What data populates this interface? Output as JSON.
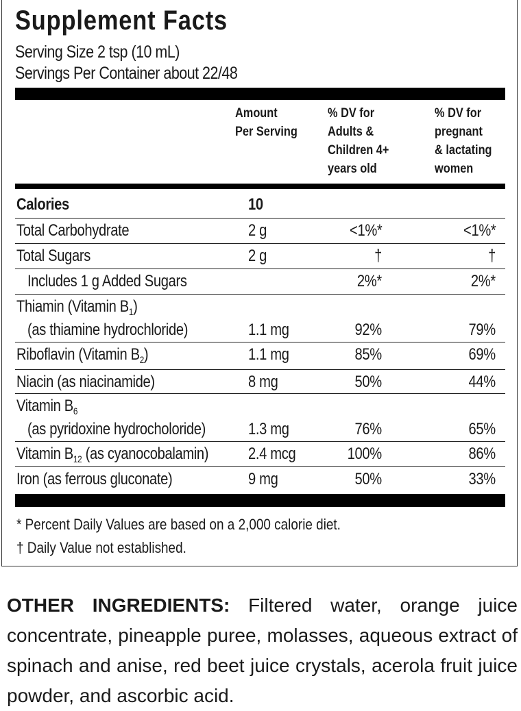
{
  "panel": {
    "title": "Supplement Facts",
    "serving_size": "Serving Size 2 tsp (10 mL)",
    "servings_per_container": "Servings Per Container about 22/48",
    "headers": {
      "amount": "Amount\nPer Serving",
      "dv_adults": "% DV for\nAdults &\nChildren 4+\nyears old",
      "dv_pregnant": "% DV for\npregnant\n& lactating\nwomen"
    },
    "calories": {
      "label": "Calories",
      "amount": "10"
    },
    "rows": [
      {
        "label": "Total Carbohydrate",
        "amount": "2 g",
        "dv_adults": "<1%*",
        "dv_pregnant": "<1%*"
      },
      {
        "label": "Total Sugars",
        "amount": "2 g",
        "dv_adults": "†",
        "dv_pregnant": "†"
      },
      {
        "label": "Includes 1 g Added Sugars",
        "amount": "",
        "dv_adults": "2%*",
        "dv_pregnant": "2%*",
        "indent": true
      },
      {
        "label": "Thiamin (Vitamin B",
        "sub": "1",
        "post": ")",
        "line2": "(as thiamine hydrochloride)",
        "amount": "1.1 mg",
        "dv_adults": "92%",
        "dv_pregnant": "79%"
      },
      {
        "label": "Riboflavin (Vitamin B",
        "sub": "2",
        "post": ")",
        "amount": "1.1 mg",
        "dv_adults": "85%",
        "dv_pregnant": "69%"
      },
      {
        "label": "Niacin (as niacinamide)",
        "amount": "8 mg",
        "dv_adults": "50%",
        "dv_pregnant": "44%"
      },
      {
        "label": "Vitamin B",
        "sub": "6",
        "post": "",
        "line2": "(as pyridoxine hydrocholoride)",
        "amount": "1.3 mg",
        "dv_adults": "76%",
        "dv_pregnant": "65%"
      },
      {
        "label": "Vitamin B",
        "sub": "12",
        "post": " (as cyanocobalamin)",
        "amount": "2.4 mcg",
        "dv_adults": "100%",
        "dv_pregnant": "86%"
      },
      {
        "label": "Iron (as ferrous gluconate)",
        "amount": "9 mg",
        "dv_adults": "50%",
        "dv_pregnant": "33%"
      }
    ],
    "footnotes": [
      "* Percent Daily Values are based on a 2,000 calorie diet.",
      "† Daily Value not established."
    ]
  },
  "other_ingredients": {
    "heading": "OTHER INGREDIENTS:",
    "text": " Filtered water, orange juice concentrate, pineapple puree, molasses, aqueous extract of spinach and anise, red beet juice crystals, acerola fruit juice powder, and ascorbic acid."
  }
}
